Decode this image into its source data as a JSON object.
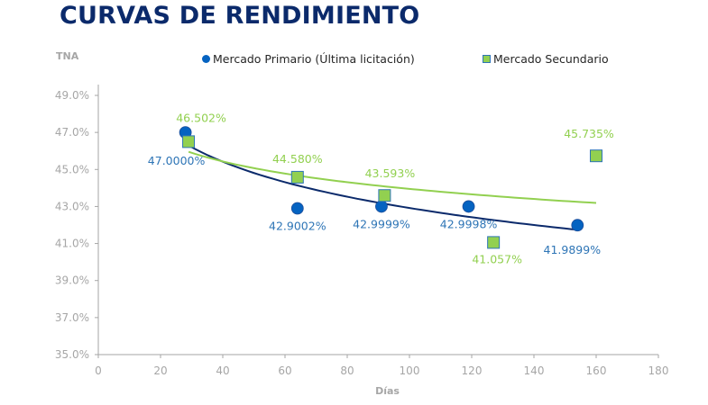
{
  "header": {
    "title": "CURVAS DE RENDIMIENTO"
  },
  "colors": {
    "title": "#0b2a6b",
    "primary_marker": "#0563c1",
    "primary_label": "#2e75b6",
    "primary_trend": "#0b2a6b",
    "secondary_marker": "#92d050",
    "secondary_border": "#2e75b6",
    "secondary_trend": "#92d050",
    "axis": "#a6a6a6"
  },
  "chart_data": {
    "type": "scatter",
    "title": "CURVAS DE RENDIMIENTO",
    "xlabel": "Días",
    "ylabel": "TNA",
    "xlim": [
      0,
      180
    ],
    "ylim": [
      35.0,
      49.0
    ],
    "x_ticks": [
      "0",
      "20",
      "40",
      "60",
      "80",
      "100",
      "120",
      "140",
      "160",
      "180"
    ],
    "x_tick_values": [
      0,
      20,
      40,
      60,
      80,
      100,
      120,
      140,
      160,
      180
    ],
    "y_ticks": [
      "35.0%",
      "37.0%",
      "39.0%",
      "41.0%",
      "43.0%",
      "45.0%",
      "47.0%",
      "49.0%"
    ],
    "y_tick_values": [
      35,
      37,
      39,
      41,
      43,
      45,
      47,
      49
    ],
    "grid": false,
    "legend_position": "top",
    "series": [
      {
        "name": "Mercado Primario (Última licitación)",
        "marker": "circle",
        "trendline": "logarithmic",
        "trend_range": [
          29,
          154
        ],
        "points": [
          {
            "x": 28,
            "y": 47.0,
            "label": "47.0000%"
          },
          {
            "x": 64,
            "y": 42.9002,
            "label": "42.9002%"
          },
          {
            "x": 91,
            "y": 42.9999,
            "label": "42.9999%"
          },
          {
            "x": 119,
            "y": 42.9998,
            "label": "42.9998%"
          },
          {
            "x": 154,
            "y": 41.9899,
            "label": "41.9899%"
          }
        ]
      },
      {
        "name": "Mercado Secundario",
        "marker": "square",
        "trendline": "logarithmic",
        "trend_range": [
          29,
          160
        ],
        "points": [
          {
            "x": 29,
            "y": 46.502,
            "label": "46.502%"
          },
          {
            "x": 64,
            "y": 44.58,
            "label": "44.580%"
          },
          {
            "x": 92,
            "y": 43.593,
            "label": "43.593%"
          },
          {
            "x": 127,
            "y": 41.057,
            "label": "41.057%"
          },
          {
            "x": 160,
            "y": 45.735,
            "label": "45.735%"
          }
        ]
      }
    ]
  }
}
